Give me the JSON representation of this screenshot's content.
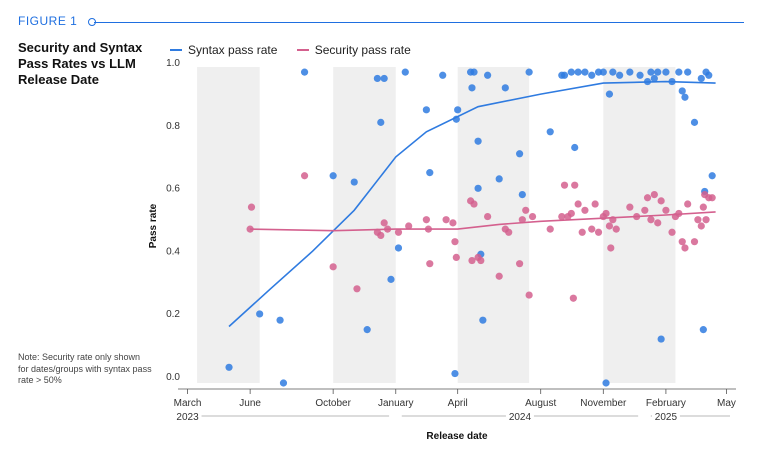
{
  "figure": {
    "label": "FIGURE 1"
  },
  "title": "Security and Syntax Pass Rates vs LLM Release Date",
  "note": "Note: Security rate only shown for dates/groups with syntax pass rate > 50%",
  "legend": {
    "syntax": "Syntax pass rate",
    "security": "Security pass rate"
  },
  "colors": {
    "syntax": "#2f7be0",
    "security": "#d4608e",
    "band": "#efefef",
    "accent": "#1f6fe0"
  },
  "chart_data": {
    "type": "scatter",
    "xlabel": "Release date",
    "ylabel": "Pass rate",
    "xlim": [
      "2023-02-15",
      "2025-05-15"
    ],
    "ylim": [
      0.0,
      1.0
    ],
    "y_ticks": [
      "0.0",
      "0.2",
      "0.4",
      "0.6",
      "0.8",
      "1.0"
    ],
    "x_ticks": [
      {
        "date": "2023-03-01",
        "label": "March"
      },
      {
        "date": "2023-06-01",
        "label": "June"
      },
      {
        "date": "2023-10-01",
        "label": "October"
      },
      {
        "date": "2024-01-01",
        "label": "January"
      },
      {
        "date": "2024-04-01",
        "label": "April"
      },
      {
        "date": "2024-08-01",
        "label": "August"
      },
      {
        "date": "2024-11-01",
        "label": "November"
      },
      {
        "date": "2025-02-01",
        "label": "February"
      },
      {
        "date": "2025-05-01",
        "label": "May"
      }
    ],
    "year_labels": [
      {
        "label": "2023",
        "from": "2023-02-15",
        "to": "2023-12-31"
      },
      {
        "label": "2024",
        "from": "2024-01-01",
        "to": "2024-12-31"
      },
      {
        "label": "2025",
        "from": "2025-01-01",
        "to": "2025-05-15"
      }
    ],
    "shaded_bands": [
      [
        "2023-03-15",
        "2023-06-15"
      ],
      [
        "2023-10-01",
        "2024-01-01"
      ],
      [
        "2024-04-01",
        "2024-07-15"
      ],
      [
        "2024-11-01",
        "2025-02-15"
      ]
    ],
    "series": [
      {
        "name": "Syntax pass rate",
        "color": "#2f7be0",
        "trend": [
          [
            "2023-05-01",
            0.18
          ],
          [
            "2023-07-01",
            0.3
          ],
          [
            "2023-09-01",
            0.42
          ],
          [
            "2023-11-01",
            0.55
          ],
          [
            "2024-01-01",
            0.72
          ],
          [
            "2024-02-15",
            0.8
          ],
          [
            "2024-05-01",
            0.88
          ],
          [
            "2024-08-01",
            0.92
          ],
          [
            "2024-11-01",
            0.955
          ],
          [
            "2025-02-01",
            0.96
          ],
          [
            "2025-04-15",
            0.955
          ]
        ],
        "points": [
          [
            "2023-05-01",
            0.05
          ],
          [
            "2023-06-15",
            0.22
          ],
          [
            "2023-07-15",
            0.2
          ],
          [
            "2023-07-20",
            0.0
          ],
          [
            "2023-08-20",
            0.99
          ],
          [
            "2023-10-01",
            0.66
          ],
          [
            "2023-11-01",
            0.64
          ],
          [
            "2023-11-20",
            0.17
          ],
          [
            "2023-12-05",
            0.97
          ],
          [
            "2023-12-10",
            0.83
          ],
          [
            "2023-12-15",
            0.97
          ],
          [
            "2023-12-25",
            0.33
          ],
          [
            "2024-01-05",
            0.43
          ],
          [
            "2024-01-15",
            0.99
          ],
          [
            "2024-02-15",
            0.87
          ],
          [
            "2024-02-20",
            0.67
          ],
          [
            "2024-03-10",
            0.98
          ],
          [
            "2024-03-28",
            0.03
          ],
          [
            "2024-03-30",
            0.84
          ],
          [
            "2024-04-01",
            0.87
          ],
          [
            "2024-04-20",
            0.99
          ],
          [
            "2024-04-22",
            0.94
          ],
          [
            "2024-04-25",
            0.99
          ],
          [
            "2024-05-01",
            0.77
          ],
          [
            "2024-05-01",
            0.62
          ],
          [
            "2024-05-05",
            0.41
          ],
          [
            "2024-05-08",
            0.2
          ],
          [
            "2024-05-15",
            0.98
          ],
          [
            "2024-06-01",
            0.65
          ],
          [
            "2024-06-10",
            0.94
          ],
          [
            "2024-07-01",
            0.73
          ],
          [
            "2024-07-05",
            0.6
          ],
          [
            "2024-07-15",
            0.99
          ],
          [
            "2024-08-15",
            0.8
          ],
          [
            "2024-09-01",
            0.98
          ],
          [
            "2024-09-05",
            0.98
          ],
          [
            "2024-09-15",
            0.99
          ],
          [
            "2024-09-20",
            0.75
          ],
          [
            "2024-09-25",
            0.99
          ],
          [
            "2024-10-05",
            0.99
          ],
          [
            "2024-10-15",
            0.98
          ],
          [
            "2024-10-25",
            0.99
          ],
          [
            "2024-11-01",
            0.99
          ],
          [
            "2024-11-05",
            0.0
          ],
          [
            "2024-11-10",
            0.92
          ],
          [
            "2024-11-15",
            0.99
          ],
          [
            "2024-11-25",
            0.98
          ],
          [
            "2024-12-10",
            0.99
          ],
          [
            "2024-12-25",
            0.98
          ],
          [
            "2025-01-05",
            0.96
          ],
          [
            "2025-01-10",
            0.99
          ],
          [
            "2025-01-15",
            0.97
          ],
          [
            "2025-01-20",
            0.99
          ],
          [
            "2025-01-25",
            0.14
          ],
          [
            "2025-02-01",
            0.99
          ],
          [
            "2025-02-10",
            0.96
          ],
          [
            "2025-02-20",
            0.99
          ],
          [
            "2025-02-25",
            0.93
          ],
          [
            "2025-03-01",
            0.91
          ],
          [
            "2025-03-05",
            0.99
          ],
          [
            "2025-03-15",
            0.83
          ],
          [
            "2025-03-25",
            0.97
          ],
          [
            "2025-04-01",
            0.99
          ],
          [
            "2025-03-28",
            0.17
          ],
          [
            "2025-03-30",
            0.61
          ],
          [
            "2025-04-05",
            0.98
          ],
          [
            "2025-04-10",
            0.66
          ]
        ]
      },
      {
        "name": "Security pass rate",
        "color": "#d4608e",
        "trend": [
          [
            "2023-06-01",
            0.49
          ],
          [
            "2023-10-01",
            0.485
          ],
          [
            "2024-01-01",
            0.49
          ],
          [
            "2024-04-01",
            0.49
          ],
          [
            "2024-06-01",
            0.505
          ],
          [
            "2024-08-01",
            0.515
          ],
          [
            "2024-11-01",
            0.525
          ],
          [
            "2025-02-01",
            0.535
          ],
          [
            "2025-04-15",
            0.545
          ]
        ],
        "points": [
          [
            "2023-06-01",
            0.49
          ],
          [
            "2023-06-03",
            0.56
          ],
          [
            "2023-08-20",
            0.66
          ],
          [
            "2023-10-01",
            0.37
          ],
          [
            "2023-11-05",
            0.3
          ],
          [
            "2023-12-05",
            0.48
          ],
          [
            "2023-12-10",
            0.47
          ],
          [
            "2023-12-15",
            0.51
          ],
          [
            "2023-12-20",
            0.49
          ],
          [
            "2024-01-05",
            0.48
          ],
          [
            "2024-01-20",
            0.5
          ],
          [
            "2024-02-15",
            0.52
          ],
          [
            "2024-02-18",
            0.49
          ],
          [
            "2024-02-20",
            0.38
          ],
          [
            "2024-03-15",
            0.52
          ],
          [
            "2024-03-25",
            0.51
          ],
          [
            "2024-03-28",
            0.45
          ],
          [
            "2024-03-30",
            0.4
          ],
          [
            "2024-04-20",
            0.58
          ],
          [
            "2024-04-22",
            0.39
          ],
          [
            "2024-04-25",
            0.57
          ],
          [
            "2024-05-01",
            0.4
          ],
          [
            "2024-05-05",
            0.39
          ],
          [
            "2024-05-15",
            0.53
          ],
          [
            "2024-06-01",
            0.34
          ],
          [
            "2024-06-10",
            0.49
          ],
          [
            "2024-06-15",
            0.48
          ],
          [
            "2024-07-01",
            0.38
          ],
          [
            "2024-07-05",
            0.52
          ],
          [
            "2024-07-10",
            0.55
          ],
          [
            "2024-07-15",
            0.28
          ],
          [
            "2024-07-20",
            0.53
          ],
          [
            "2024-08-15",
            0.49
          ],
          [
            "2024-09-01",
            0.53
          ],
          [
            "2024-09-05",
            0.63
          ],
          [
            "2024-09-10",
            0.53
          ],
          [
            "2024-09-15",
            0.54
          ],
          [
            "2024-09-18",
            0.27
          ],
          [
            "2024-09-20",
            0.63
          ],
          [
            "2024-09-25",
            0.57
          ],
          [
            "2024-10-01",
            0.48
          ],
          [
            "2024-10-05",
            0.55
          ],
          [
            "2024-10-15",
            0.49
          ],
          [
            "2024-10-20",
            0.57
          ],
          [
            "2024-10-25",
            0.48
          ],
          [
            "2024-11-01",
            0.53
          ],
          [
            "2024-11-05",
            0.54
          ],
          [
            "2024-11-10",
            0.5
          ],
          [
            "2024-11-12",
            0.43
          ],
          [
            "2024-11-15",
            0.52
          ],
          [
            "2024-11-20",
            0.49
          ],
          [
            "2024-12-10",
            0.56
          ],
          [
            "2024-12-20",
            0.53
          ],
          [
            "2025-01-01",
            0.55
          ],
          [
            "2025-01-05",
            0.59
          ],
          [
            "2025-01-10",
            0.52
          ],
          [
            "2025-01-15",
            0.6
          ],
          [
            "2025-01-20",
            0.51
          ],
          [
            "2025-01-25",
            0.58
          ],
          [
            "2025-02-01",
            0.55
          ],
          [
            "2025-02-10",
            0.48
          ],
          [
            "2025-02-15",
            0.53
          ],
          [
            "2025-02-20",
            0.54
          ],
          [
            "2025-02-25",
            0.45
          ],
          [
            "2025-03-01",
            0.43
          ],
          [
            "2025-03-05",
            0.57
          ],
          [
            "2025-03-15",
            0.45
          ],
          [
            "2025-03-20",
            0.52
          ],
          [
            "2025-03-25",
            0.5
          ],
          [
            "2025-03-28",
            0.56
          ],
          [
            "2025-03-30",
            0.6
          ],
          [
            "2025-04-01",
            0.52
          ],
          [
            "2025-04-05",
            0.59
          ],
          [
            "2025-04-10",
            0.59
          ]
        ]
      }
    ]
  }
}
